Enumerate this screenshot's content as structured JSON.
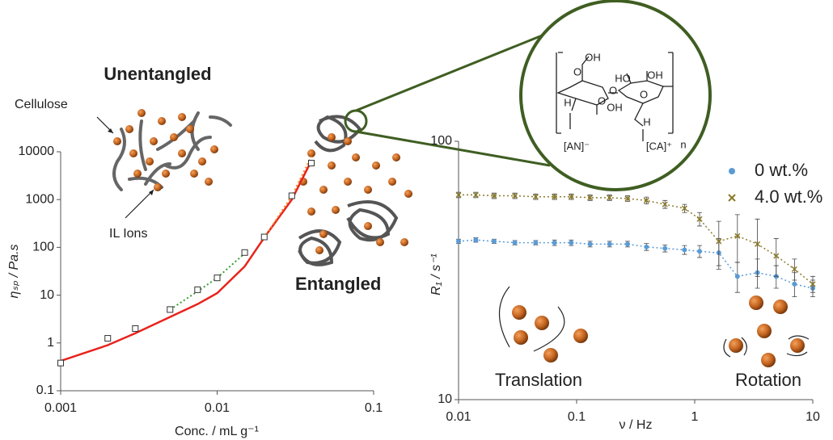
{
  "chart_data": [
    {
      "type": "line",
      "xlabel": "Conc. / mL g⁻¹",
      "ylabel": "ηₛₚ / Pa.s",
      "xscale": "log",
      "yscale": "log",
      "xlim": [
        0.001,
        0.1
      ],
      "xticks": [
        0.001,
        0.01,
        0.1
      ],
      "ylim": [
        0.1,
        10000
      ],
      "yticks": [
        0.1,
        1,
        10,
        100,
        1000,
        10000
      ],
      "annotations": [
        "Unentangled",
        "Cellulose",
        "IL Ions",
        "Entangled"
      ],
      "series": [
        {
          "style": "solid",
          "color": "#e8231c",
          "x": [
            0.001,
            0.002,
            0.003,
            0.005,
            0.0075,
            0.01,
            0.015,
            0.02,
            0.03,
            0.04
          ],
          "values": [
            0.42,
            0.9,
            1.6,
            3.5,
            6.5,
            11,
            40,
            160,
            1000,
            6500
          ]
        },
        {
          "style": "dotted",
          "color": "#3a9b35",
          "x": [
            0.005,
            0.0075,
            0.01,
            0.015
          ],
          "values": [
            5,
            12,
            23,
            75
          ]
        },
        {
          "style": "dotted",
          "color": "#f08a24",
          "x": [
            0.02,
            0.03,
            0.04
          ],
          "values": [
            160,
            1200,
            8000
          ]
        },
        {
          "style": "square",
          "color": "#333333",
          "x": [
            0.001,
            0.002,
            0.003,
            0.005,
            0.0075,
            0.01,
            0.015,
            0.02,
            0.03,
            0.04
          ],
          "values": [
            0.38,
            1.25,
            2,
            5,
            13,
            23,
            78,
            165,
            1200,
            5800
          ]
        }
      ]
    },
    {
      "type": "scatter",
      "xlabel": "ν / Hz",
      "ylabel": "R₁ / s⁻¹",
      "xscale": "log",
      "yscale": "log",
      "xlim": [
        0.01,
        10
      ],
      "xticks": [
        0.01,
        0.1,
        1,
        10
      ],
      "ylim": [
        10,
        100
      ],
      "yticks": [
        10,
        100
      ],
      "legend": "upper right",
      "annotations": [
        "Translation",
        "Rotation"
      ],
      "x": [
        0.01,
        0.014,
        0.02,
        0.03,
        0.045,
        0.065,
        0.09,
        0.13,
        0.19,
        0.27,
        0.39,
        0.56,
        0.82,
        1.1,
        1.6,
        2.3,
        3.4,
        4.9,
        7,
        10
      ],
      "series": [
        {
          "name": "0 wt.%",
          "color": "#5b9bd5",
          "marker": "circle",
          "values": [
            41,
            41.5,
            41,
            40.5,
            40.5,
            40.5,
            40.5,
            40,
            40,
            40,
            39,
            38.5,
            38,
            37.5,
            37,
            30,
            31,
            30,
            28,
            27
          ],
          "errors": [
            0.8,
            0.8,
            0.8,
            0.8,
            0.8,
            1,
            1,
            1,
            1,
            1,
            1.2,
            1.2,
            1.5,
            2,
            5,
            4,
            4,
            3,
            3,
            2
          ]
        },
        {
          "name": "4.0 wt.%",
          "color": "#8b7a2a",
          "marker": "cross",
          "values": [
            62,
            62,
            61.5,
            61.5,
            61,
            61,
            61,
            60.5,
            60.5,
            60,
            59,
            57,
            55,
            50,
            41,
            43,
            40,
            36,
            32,
            28
          ],
          "errors": [
            1.5,
            1.5,
            1.5,
            1.5,
            1.5,
            1.5,
            1.5,
            1.5,
            1.5,
            1.5,
            1.8,
            2,
            2,
            3,
            8,
            9,
            10,
            6,
            3,
            2
          ]
        }
      ]
    }
  ],
  "structure": {
    "labels": [
      "OH",
      "HO",
      "OH",
      "O",
      "O",
      "O",
      "OH",
      "O",
      "H",
      "H",
      "[AN]⁻",
      "[CA]⁺",
      "n"
    ]
  }
}
